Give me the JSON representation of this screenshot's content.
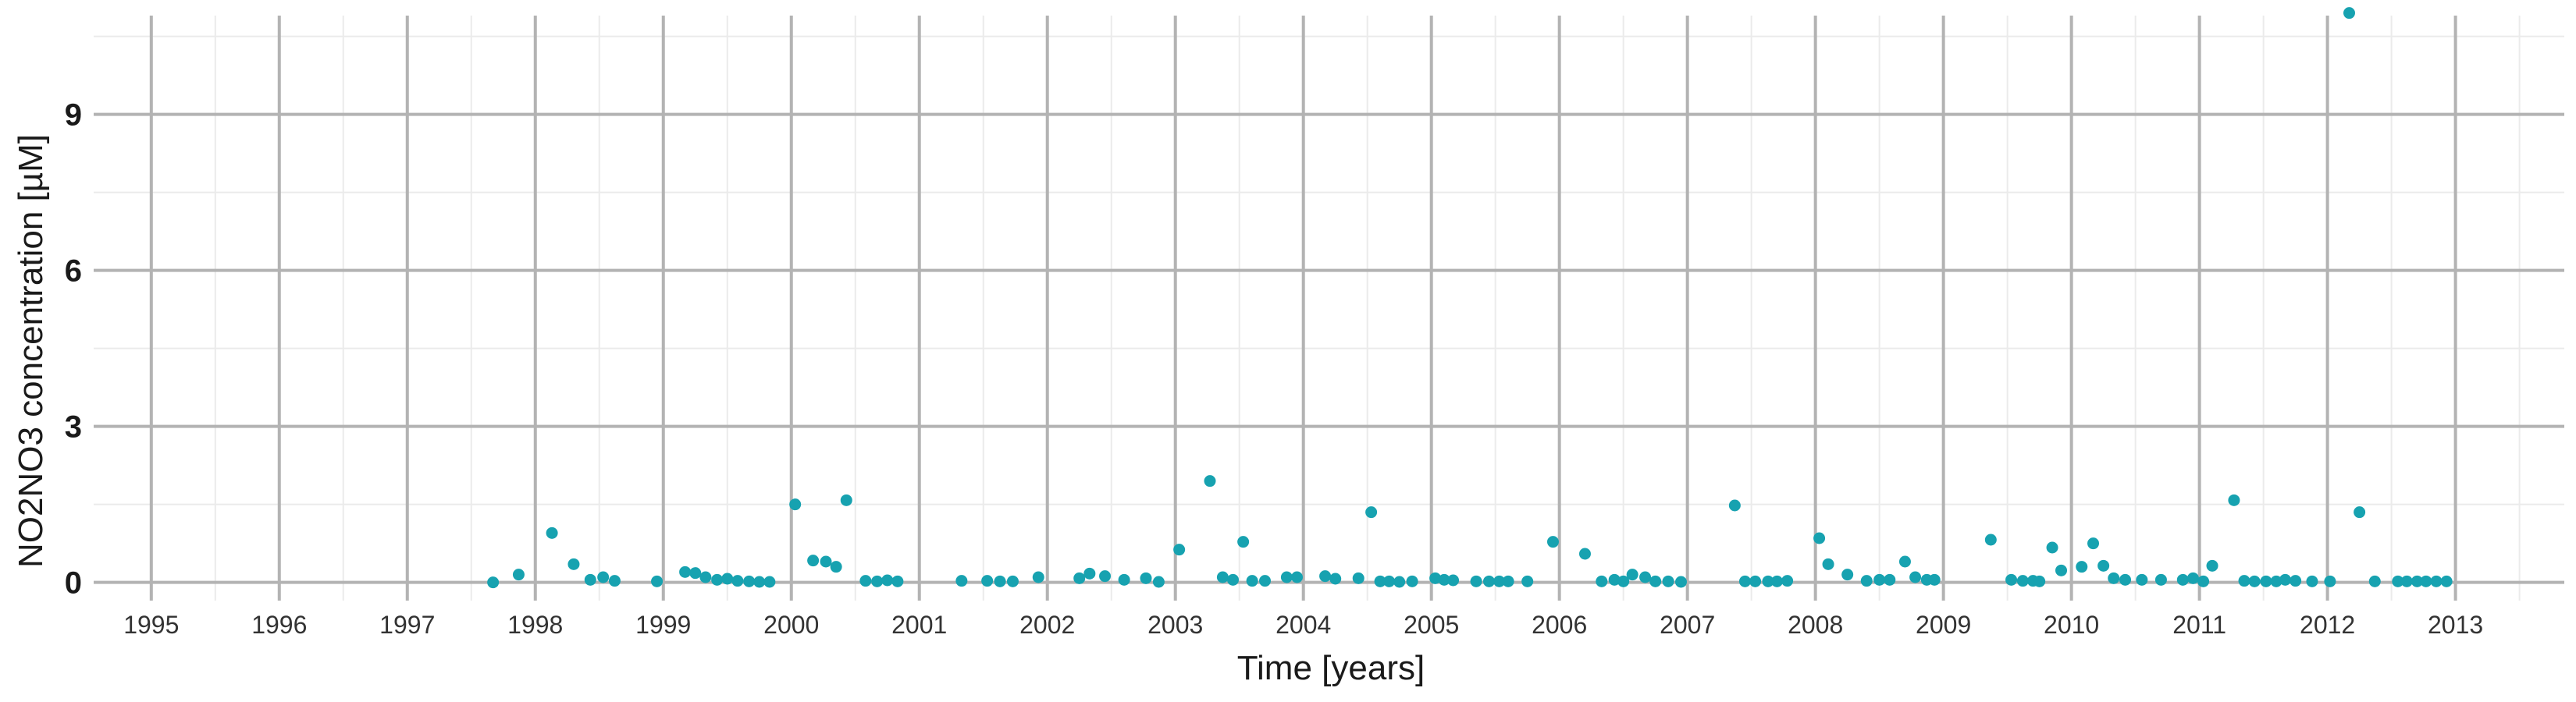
{
  "chart_data": {
    "type": "scatter",
    "title": "",
    "xlabel": "Time [years]",
    "ylabel": "NO2NO3 concentration [µM]",
    "xlim": [
      1994.55,
      2013.85
    ],
    "ylim": [
      -0.35,
      10.9
    ],
    "y_ticks": [
      0,
      3,
      6,
      9
    ],
    "y_tick_labels": [
      "0",
      "3",
      "6",
      "9"
    ],
    "x_ticks": [
      1995,
      1996,
      1997,
      1998,
      1999,
      2000,
      2001,
      2002,
      2003,
      2004,
      2005,
      2006,
      2007,
      2008,
      2009,
      2010,
      2011,
      2012,
      2013
    ],
    "x_tick_labels": [
      "1995",
      "1996",
      "1997",
      "1998",
      "1999",
      "2000",
      "2001",
      "2002",
      "2003",
      "2004",
      "2005",
      "2006",
      "2007",
      "2008",
      "2009",
      "2010",
      "2011",
      "2012",
      "2013"
    ],
    "grid": true,
    "legend": "none",
    "point_color": "#17a2b0",
    "x": [
      1997.67,
      1997.87,
      1998.13,
      1998.3,
      1998.43,
      1998.53,
      1998.62,
      1998.95,
      1999.17,
      1999.25,
      1999.33,
      1999.42,
      1999.5,
      1999.58,
      1999.67,
      1999.75,
      1999.83,
      2000.03,
      2000.17,
      2000.27,
      2000.35,
      2000.43,
      2000.58,
      2000.67,
      2000.75,
      2000.83,
      2001.33,
      2001.53,
      2001.63,
      2001.73,
      2001.93,
      2002.25,
      2002.33,
      2002.45,
      2002.6,
      2002.77,
      2002.87,
      2003.03,
      2003.27,
      2003.37,
      2003.45,
      2003.53,
      2003.6,
      2003.7,
      2003.87,
      2003.95,
      2004.17,
      2004.25,
      2004.43,
      2004.53,
      2004.6,
      2004.67,
      2004.75,
      2004.85,
      2005.03,
      2005.1,
      2005.17,
      2005.35,
      2005.45,
      2005.53,
      2005.6,
      2005.75,
      2005.95,
      2006.2,
      2006.33,
      2006.43,
      2006.5,
      2006.57,
      2006.67,
      2006.75,
      2006.85,
      2006.95,
      2007.37,
      2007.45,
      2007.53,
      2007.63,
      2007.7,
      2007.78,
      2008.03,
      2008.1,
      2008.25,
      2008.4,
      2008.5,
      2008.58,
      2008.7,
      2008.78,
      2008.87,
      2008.93,
      2009.37,
      2009.53,
      2009.62,
      2009.7,
      2009.75,
      2009.85,
      2009.92,
      2010.08,
      2010.17,
      2010.25,
      2010.33,
      2010.42,
      2010.55,
      2010.7,
      2010.87,
      2010.95,
      2011.03,
      2011.1,
      2011.27,
      2011.35,
      2011.43,
      2011.52,
      2011.6,
      2011.67,
      2011.75,
      2011.88,
      2012.02,
      2012.17,
      2012.25,
      2012.37,
      2012.55,
      2012.62,
      2012.7,
      2012.77,
      2012.85,
      2012.93
    ],
    "y": [
      0.0,
      0.15,
      0.95,
      0.35,
      0.05,
      0.1,
      0.03,
      0.02,
      0.2,
      0.18,
      0.1,
      0.05,
      0.07,
      0.03,
      0.02,
      0.01,
      0.01,
      1.5,
      0.42,
      0.4,
      0.3,
      1.58,
      0.03,
      0.02,
      0.04,
      0.02,
      0.03,
      0.03,
      0.02,
      0.02,
      0.1,
      0.08,
      0.17,
      0.12,
      0.05,
      0.08,
      0.01,
      0.63,
      1.95,
      0.1,
      0.05,
      0.78,
      0.03,
      0.03,
      0.1,
      0.1,
      0.12,
      0.07,
      0.08,
      1.35,
      0.02,
      0.02,
      0.01,
      0.02,
      0.08,
      0.05,
      0.04,
      0.02,
      0.02,
      0.02,
      0.02,
      0.02,
      0.78,
      0.55,
      0.02,
      0.05,
      0.02,
      0.15,
      0.1,
      0.02,
      0.02,
      0.01,
      1.48,
      0.02,
      0.02,
      0.02,
      0.02,
      0.03,
      0.85,
      0.35,
      0.15,
      0.03,
      0.05,
      0.05,
      0.4,
      0.1,
      0.05,
      0.05,
      0.82,
      0.05,
      0.03,
      0.03,
      0.02,
      0.67,
      0.23,
      0.3,
      0.75,
      0.32,
      0.08,
      0.05,
      0.05,
      0.05,
      0.05,
      0.08,
      0.02,
      0.32,
      1.58,
      0.03,
      0.02,
      0.02,
      0.02,
      0.05,
      0.03,
      0.02,
      0.02,
      10.95,
      1.35,
      0.02,
      0.02,
      0.02,
      0.02,
      0.02,
      0.02,
      0.02
    ]
  }
}
